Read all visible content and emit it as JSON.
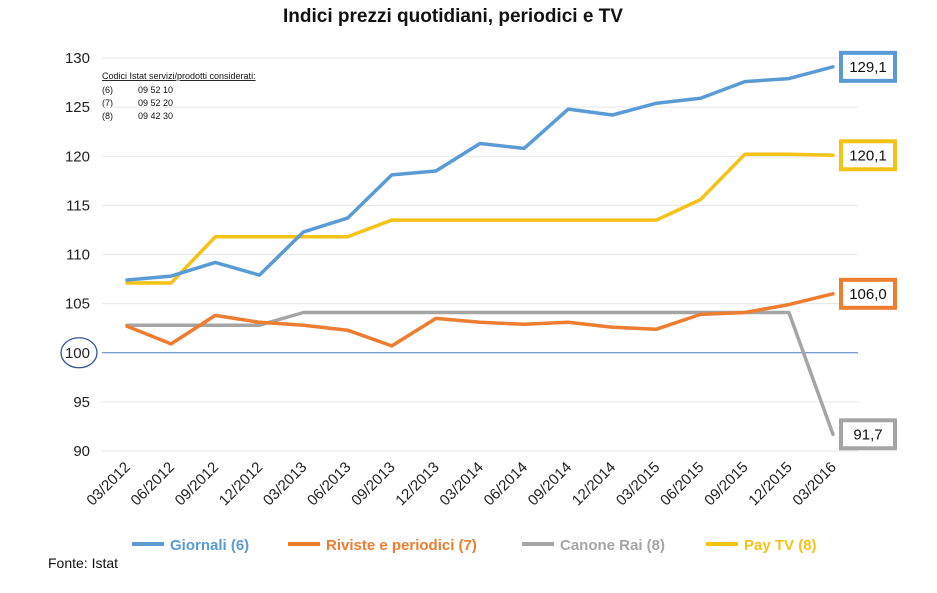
{
  "chart_data": {
    "type": "line",
    "title": "Indici prezzi quotidiani, periodici e TV",
    "categories": [
      "03/2012",
      "06/2012",
      "09/2012",
      "12/2012",
      "03/2013",
      "06/2013",
      "09/2013",
      "12/2013",
      "03/2014",
      "06/2014",
      "09/2014",
      "12/2014",
      "03/2015",
      "06/2015",
      "09/2015",
      "12/2015",
      "03/2016"
    ],
    "ylim": [
      90,
      130
    ],
    "yticks": [
      "90",
      "95",
      "100",
      "105",
      "110",
      "115",
      "120",
      "125",
      "130"
    ],
    "highlight_tick": "100",
    "series": [
      {
        "name": "Giornali (6)",
        "color": "#5b9bd5",
        "values": [
          107.4,
          107.8,
          109.2,
          107.9,
          112.3,
          113.7,
          118.1,
          118.5,
          121.3,
          120.8,
          124.8,
          124.2,
          125.4,
          125.9,
          127.6,
          127.9,
          129.1
        ],
        "end_label": "129,1"
      },
      {
        "name": "Riviste e periodici (7)",
        "color": "#ed7d31",
        "values": [
          102.7,
          100.9,
          103.8,
          103.1,
          102.8,
          102.3,
          100.7,
          103.5,
          103.1,
          102.9,
          103.1,
          102.6,
          102.4,
          103.9,
          104.1,
          104.9,
          106.0
        ],
        "end_label": "106,0"
      },
      {
        "name": "Canone Rai (8)",
        "color": "#a5a5a5",
        "values": [
          102.8,
          102.8,
          102.8,
          102.8,
          104.1,
          104.1,
          104.1,
          104.1,
          104.1,
          104.1,
          104.1,
          104.1,
          104.1,
          104.1,
          104.1,
          104.1,
          91.7
        ],
        "end_label": "91,7"
      },
      {
        "name": "Pay TV (8)",
        "color": "#f5c216",
        "values": [
          107.1,
          107.1,
          111.8,
          111.8,
          111.8,
          111.8,
          113.5,
          113.5,
          113.5,
          113.5,
          113.5,
          113.5,
          113.5,
          115.6,
          120.2,
          120.2,
          120.1
        ],
        "end_label": "120,1"
      }
    ],
    "notes": {
      "heading": "Codici Istat servizi/prodotti considerati:",
      "rows": [
        {
          "ref": "(6)",
          "code": "09 52 10"
        },
        {
          "ref": "(7)",
          "code": "09 52 20"
        },
        {
          "ref": "(8)",
          "code": "09 42 30"
        }
      ]
    },
    "source": "Fonte: Istat",
    "legend_position": "bottom"
  }
}
